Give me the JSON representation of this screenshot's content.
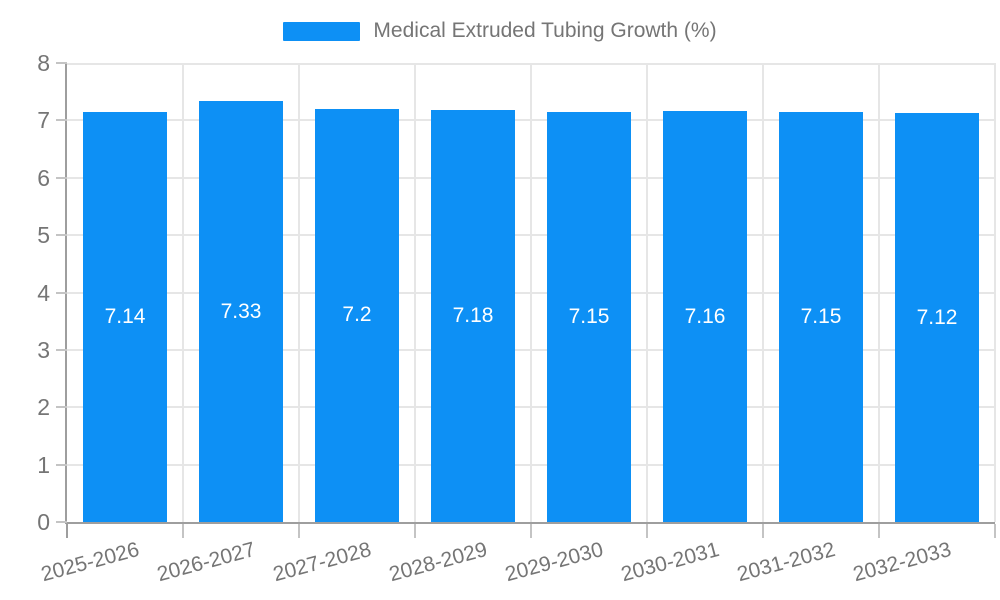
{
  "legend": {
    "series_label": "Medical Extruded Tubing Growth (%)"
  },
  "chart_data": {
    "type": "bar",
    "title": "Medical Extruded Tubing Growth (%)",
    "categories": [
      "2025-2026",
      "2026-2027",
      "2027-2028",
      "2028-2029",
      "2029-2030",
      "2030-2031",
      "2031-2032",
      "2032-2033"
    ],
    "values": [
      7.14,
      7.33,
      7.2,
      7.18,
      7.15,
      7.16,
      7.15,
      7.12
    ],
    "value_labels": [
      "7.14",
      "7.33",
      "7.2",
      "7.18",
      "7.15",
      "7.16",
      "7.15",
      "7.12"
    ],
    "series": [
      {
        "name": "Medical Extruded Tubing Growth (%)",
        "values": [
          7.14,
          7.33,
          7.2,
          7.18,
          7.15,
          7.16,
          7.15,
          7.12
        ]
      }
    ],
    "xlabel": "",
    "ylabel": "",
    "ylim": [
      0,
      8
    ],
    "ytick_step": 1,
    "ytick_labels": [
      "0",
      "1",
      "2",
      "3",
      "4",
      "5",
      "6",
      "7",
      "8"
    ],
    "grid": true,
    "legend_position": "top-center",
    "value_labels_inside_bars": true
  },
  "colors": {
    "bar": "#0d90f5",
    "axis": "#9e9e9e",
    "grid": "#e6e6e6",
    "tick": "#c4c4c4",
    "text": "#757575",
    "value_label": "#ffffff",
    "background": "#ffffff"
  }
}
